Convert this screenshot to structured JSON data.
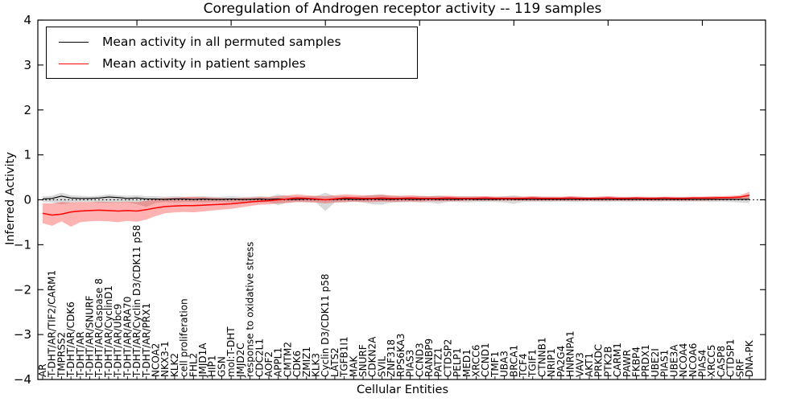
{
  "chart_data": {
    "type": "line",
    "title": "Coregulation of Androgen receptor activity -- 119 samples",
    "xlabel": "Cellular Entities",
    "ylabel": "Inferred Activity",
    "ylim": [
      -4,
      4
    ],
    "yticks": [
      4,
      3,
      2,
      1,
      0,
      -1,
      -2,
      -3,
      -4
    ],
    "ytick_labels": [
      "4",
      "3",
      "2",
      "1",
      "0",
      "−1",
      "−2",
      "−3",
      "−4"
    ],
    "xticks_major_every": 10,
    "grid": false,
    "legend_position": "upper left",
    "zero_line": {
      "y": 0,
      "style": "dotted",
      "color": "#000000"
    },
    "categories": [
      "AR",
      "T-DHT/AR/TIF2/CARM1",
      "TMPRSS2",
      "T-DHT/AR/CDK6",
      "T-DHT/AR",
      "T-DHT/AR/SNURF",
      "T-DHT/AR/Caspase 8",
      "T-DHT/AR/CyclinD1",
      "T-DHT/AR/Ubc9",
      "T-DHT/AR/ARA70",
      "T-DHT/AR/Cyclin D3/CDK11 p58",
      "T-DHT/AR/PRX1",
      "NCOA2",
      "NKX3-1",
      "KLK2",
      "cell proliferation",
      "FHL2",
      "JMJD1A",
      "HIP1",
      "GSN",
      "mol:T-DHT",
      "JMJD2C",
      "response to oxidative stress",
      "CDC2L1",
      "AOF2",
      "APPL1",
      "CMTM2",
      "CDK6",
      "ZMIZ1",
      "KLK3",
      "Cyclin D3/CDK11 p58",
      "LATS2",
      "TGFB1I1",
      "MAK",
      "SNURF",
      "CDKN2A",
      "SVIL",
      "ZNF318",
      "RPS6KA3",
      "PIAS3",
      "CCND3",
      "RANBP9",
      "PATZ1",
      "CTDSP2",
      "PELP1",
      "MED1",
      "XRCC6",
      "CCND1",
      "TMF1",
      "UBA3",
      "BRCA1",
      "TCF4",
      "TGIF1",
      "CTNNB1",
      "NRIP1",
      "PA2G4",
      "HNRNPA1",
      "VAV3",
      "AKT1",
      "PRKDC",
      "PTK2B",
      "CARM1",
      "PAWR",
      "FKBP4",
      "PRDX1",
      "UBE2I",
      "PIAS1",
      "UBE3A",
      "NCOA4",
      "NCOA6",
      "PIAS4",
      "XRCC5",
      "CASP8",
      "CTDSP1",
      "SRF",
      "DNA-PK"
    ],
    "series": [
      {
        "name": "Mean activity in all permuted samples",
        "color": "#000000",
        "band_color": "rgba(0,0,0,0.15)",
        "values": [
          0.02,
          0.03,
          0.08,
          0.04,
          0.03,
          0.03,
          0.04,
          0.06,
          0.05,
          0.03,
          0.04,
          0.02,
          0.02,
          0.01,
          0.02,
          0.02,
          0.01,
          0.02,
          0.01,
          0.01,
          0.02,
          0.01,
          0.01,
          0.02,
          0.01,
          0.02,
          0.01,
          0.01,
          0.02,
          0.01,
          0.0,
          0.01,
          0.02,
          0.01,
          0.01,
          0.02,
          0.01,
          0.01,
          0.02,
          0.01,
          0.01,
          0.02,
          0.01,
          0.01,
          0.01,
          0.02,
          0.01,
          0.01,
          0.01,
          0.02,
          0.01,
          0.01,
          0.01,
          0.01,
          0.01,
          0.01,
          0.01,
          0.01,
          0.01,
          0.01,
          0.01,
          0.01,
          0.01,
          0.01,
          0.01,
          0.01,
          0.01,
          0.01,
          0.01,
          0.01,
          0.01,
          0.01,
          0.01,
          0.01,
          0.01,
          0.01
        ],
        "band_high": [
          0.08,
          0.09,
          0.16,
          0.1,
          0.09,
          0.08,
          0.09,
          0.12,
          0.1,
          0.09,
          0.1,
          0.08,
          0.08,
          0.07,
          0.08,
          0.07,
          0.07,
          0.08,
          0.07,
          0.07,
          0.08,
          0.07,
          0.07,
          0.08,
          0.07,
          0.12,
          0.08,
          0.07,
          0.08,
          0.08,
          0.16,
          0.08,
          0.08,
          0.07,
          0.08,
          0.11,
          0.12,
          0.08,
          0.08,
          0.07,
          0.08,
          0.08,
          0.1,
          0.07,
          0.07,
          0.08,
          0.07,
          0.07,
          0.07,
          0.08,
          0.1,
          0.07,
          0.07,
          0.07,
          0.07,
          0.06,
          0.07,
          0.07,
          0.06,
          0.07,
          0.07,
          0.06,
          0.07,
          0.06,
          0.06,
          0.07,
          0.06,
          0.06,
          0.07,
          0.06,
          0.06,
          0.07,
          0.06,
          0.07,
          0.08,
          0.09
        ],
        "band_low": [
          -0.05,
          -0.06,
          -0.1,
          -0.07,
          -0.05,
          -0.05,
          -0.06,
          -0.07,
          -0.06,
          -0.05,
          -0.1,
          -0.16,
          -0.07,
          -0.05,
          -0.06,
          -0.05,
          -0.05,
          -0.06,
          -0.05,
          -0.05,
          -0.06,
          -0.05,
          -0.05,
          -0.06,
          -0.05,
          -0.12,
          -0.06,
          -0.05,
          -0.06,
          -0.06,
          -0.25,
          -0.06,
          -0.06,
          -0.05,
          -0.06,
          -0.1,
          -0.11,
          -0.06,
          -0.06,
          -0.05,
          -0.06,
          -0.06,
          -0.09,
          -0.05,
          -0.05,
          -0.06,
          -0.05,
          -0.05,
          -0.05,
          -0.06,
          -0.09,
          -0.05,
          -0.05,
          -0.05,
          -0.05,
          -0.04,
          -0.05,
          -0.05,
          -0.04,
          -0.05,
          -0.05,
          -0.04,
          -0.05,
          -0.04,
          -0.04,
          -0.05,
          -0.04,
          -0.04,
          -0.05,
          -0.04,
          -0.04,
          -0.05,
          -0.04,
          -0.05,
          -0.06,
          -0.07
        ]
      },
      {
        "name": "Mean activity in patient samples",
        "color": "#ff0000",
        "band_color": "rgba(255,0,0,0.30)",
        "values": [
          -0.3,
          -0.34,
          -0.32,
          -0.27,
          -0.25,
          -0.24,
          -0.23,
          -0.24,
          -0.25,
          -0.24,
          -0.25,
          -0.22,
          -0.18,
          -0.15,
          -0.14,
          -0.13,
          -0.13,
          -0.12,
          -0.11,
          -0.1,
          -0.09,
          -0.07,
          -0.05,
          -0.03,
          -0.02,
          0.0,
          0.02,
          0.04,
          0.03,
          0.02,
          0.0,
          0.02,
          0.04,
          0.04,
          0.03,
          0.03,
          0.04,
          0.03,
          0.03,
          0.04,
          0.03,
          0.03,
          0.03,
          0.04,
          0.03,
          0.03,
          0.03,
          0.04,
          0.03,
          0.03,
          0.03,
          0.03,
          0.04,
          0.03,
          0.03,
          0.03,
          0.04,
          0.03,
          0.03,
          0.03,
          0.04,
          0.03,
          0.03,
          0.04,
          0.03,
          0.03,
          0.04,
          0.03,
          0.03,
          0.04,
          0.04,
          0.04,
          0.05,
          0.05,
          0.06,
          0.1
        ],
        "band_high": [
          -0.08,
          -0.08,
          -0.05,
          -0.06,
          -0.05,
          -0.05,
          -0.04,
          -0.05,
          -0.05,
          -0.04,
          -0.05,
          -0.02,
          0.02,
          0.04,
          0.05,
          0.06,
          0.07,
          0.06,
          0.05,
          0.04,
          0.03,
          0.04,
          0.05,
          0.06,
          0.06,
          0.08,
          0.1,
          0.12,
          0.1,
          0.09,
          0.08,
          0.1,
          0.12,
          0.11,
          0.1,
          0.1,
          0.11,
          0.1,
          0.09,
          0.1,
          0.09,
          0.08,
          0.08,
          0.09,
          0.08,
          0.07,
          0.08,
          0.08,
          0.07,
          0.07,
          0.07,
          0.07,
          0.08,
          0.07,
          0.07,
          0.07,
          0.08,
          0.07,
          0.06,
          0.07,
          0.08,
          0.07,
          0.06,
          0.07,
          0.07,
          0.06,
          0.07,
          0.07,
          0.06,
          0.07,
          0.07,
          0.08,
          0.08,
          0.09,
          0.1,
          0.18
        ],
        "band_low": [
          -0.52,
          -0.58,
          -0.48,
          -0.6,
          -0.5,
          -0.48,
          -0.47,
          -0.48,
          -0.5,
          -0.47,
          -0.49,
          -0.44,
          -0.36,
          -0.3,
          -0.28,
          -0.27,
          -0.28,
          -0.26,
          -0.24,
          -0.22,
          -0.2,
          -0.17,
          -0.14,
          -0.11,
          -0.1,
          -0.08,
          -0.07,
          -0.05,
          -0.05,
          -0.06,
          -0.08,
          -0.06,
          -0.05,
          -0.04,
          -0.05,
          -0.05,
          -0.04,
          -0.05,
          -0.04,
          -0.04,
          -0.04,
          -0.03,
          -0.03,
          -0.03,
          -0.03,
          -0.02,
          -0.02,
          -0.02,
          -0.02,
          -0.02,
          -0.02,
          -0.02,
          -0.02,
          -0.02,
          -0.02,
          -0.02,
          -0.02,
          -0.02,
          -0.02,
          -0.02,
          -0.02,
          -0.02,
          -0.02,
          -0.02,
          -0.02,
          -0.02,
          -0.02,
          -0.02,
          -0.02,
          -0.02,
          -0.02,
          -0.01,
          -0.01,
          0.0,
          0.01,
          0.02
        ]
      }
    ]
  }
}
